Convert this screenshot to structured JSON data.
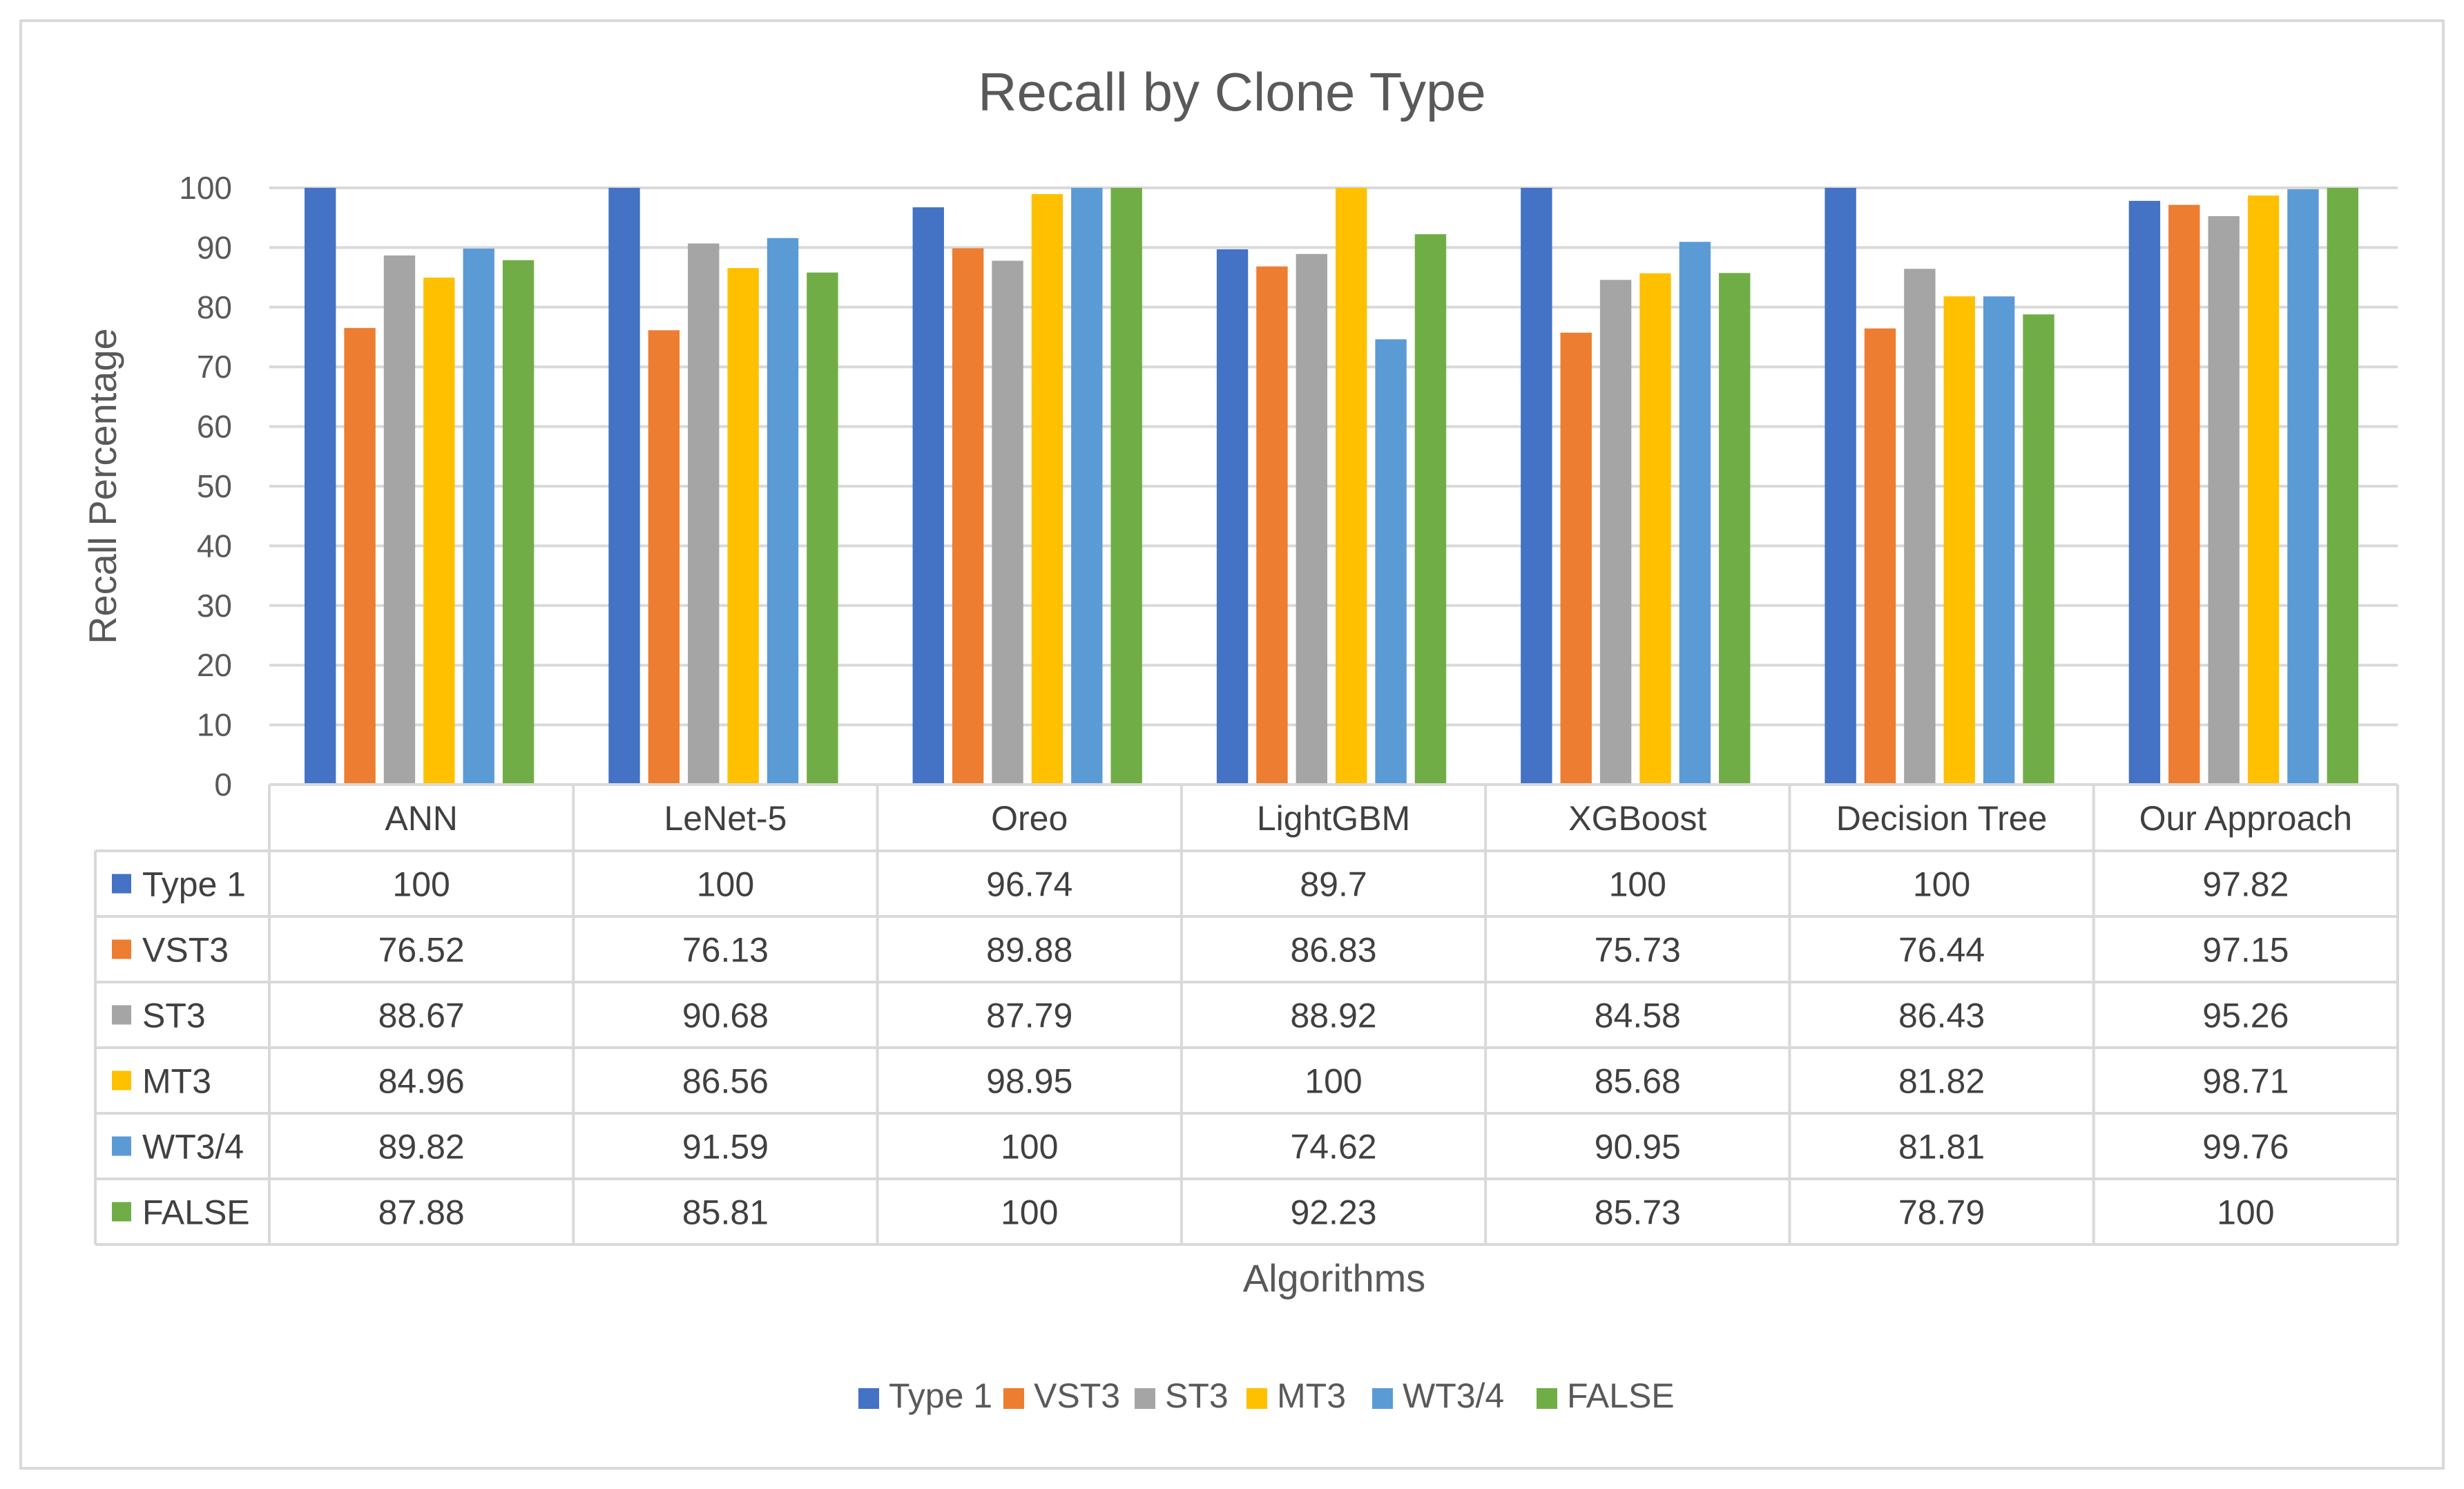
{
  "chart_data": {
    "type": "bar",
    "title": "Recall by Clone Type",
    "xlabel": "Algorithms",
    "ylabel": "Recall Percentage",
    "ylim": [
      0,
      100
    ],
    "yticks": [
      "0",
      "10",
      "20",
      "30",
      "40",
      "50",
      "60",
      "70",
      "80",
      "90",
      "100"
    ],
    "grid": true,
    "legend_position": "bottom",
    "categories": [
      "ANN",
      "LeNet-5",
      "Oreo",
      "LightGBM",
      "XGBoost",
      "Decision Tree",
      "Our Approach"
    ],
    "series": [
      {
        "name": "Type 1",
        "color": "#4472c4",
        "values": [
          100,
          100,
          96.74,
          89.7,
          100,
          100,
          97.82
        ],
        "labels": [
          "100",
          "100",
          "96.74",
          "89.7",
          "100",
          "100",
          "97.82"
        ]
      },
      {
        "name": "VST3",
        "color": "#ed7d31",
        "values": [
          76.52,
          76.13,
          89.88,
          86.83,
          75.73,
          76.44,
          97.15
        ],
        "labels": [
          "76.52",
          "76.13",
          "89.88",
          "86.83",
          "75.73",
          "76.44",
          "97.15"
        ]
      },
      {
        "name": "ST3",
        "color": "#a5a5a5",
        "values": [
          88.67,
          90.68,
          87.79,
          88.92,
          84.58,
          86.43,
          95.26
        ],
        "labels": [
          "88.67",
          "90.68",
          "87.79",
          "88.92",
          "84.58",
          "86.43",
          "95.26"
        ]
      },
      {
        "name": "MT3",
        "color": "#ffc000",
        "values": [
          84.96,
          86.56,
          98.95,
          100,
          85.68,
          81.82,
          98.71
        ],
        "labels": [
          "84.96",
          "86.56",
          "98.95",
          "100",
          "85.68",
          "81.82",
          "98.71"
        ]
      },
      {
        "name": "WT3/4",
        "color": "#5b9bd5",
        "values": [
          89.82,
          91.59,
          100,
          74.62,
          90.95,
          81.81,
          99.76
        ],
        "labels": [
          "89.82",
          "91.59",
          "100",
          "74.62",
          "90.95",
          "81.81",
          "99.76"
        ]
      },
      {
        "name": "FALSE",
        "color": "#70ad47",
        "values": [
          87.88,
          85.81,
          100,
          92.23,
          85.73,
          78.79,
          100
        ],
        "labels": [
          "87.88",
          "85.81",
          "100",
          "92.23",
          "85.73",
          "78.79",
          "100"
        ]
      }
    ]
  }
}
